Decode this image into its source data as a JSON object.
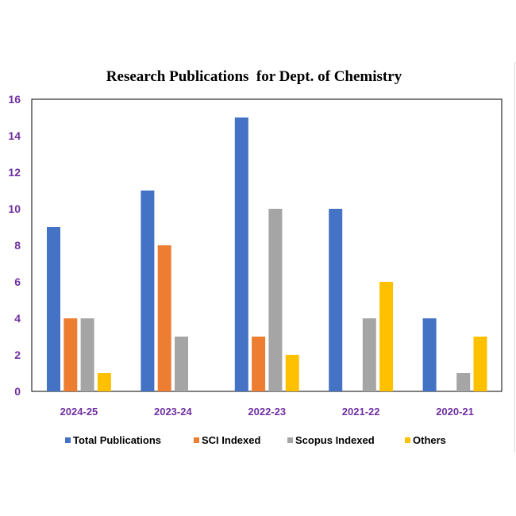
{
  "chart_data": {
    "type": "bar",
    "title": "Research Publications  for Dept. of Chemistry",
    "xlabel": "",
    "ylabel": "",
    "ylim": [
      0,
      16
    ],
    "yticks": [
      "0",
      "2",
      "4",
      "6",
      "8",
      "10",
      "12",
      "14",
      "16"
    ],
    "grid": false,
    "legend_position": "bottom",
    "categories": [
      "2024-25",
      "2023-24",
      "2022-23",
      "2021-22",
      "2020-21"
    ],
    "series": [
      {
        "name": "Total Publications",
        "color": "#4472C4",
        "values": [
          9,
          11,
          15,
          10,
          4
        ]
      },
      {
        "name": "SCI Indexed",
        "color": "#ED7D31",
        "values": [
          4,
          8,
          3,
          0,
          0
        ]
      },
      {
        "name": "Scopus Indexed",
        "color": "#A5A5A5",
        "values": [
          4,
          3,
          10,
          4,
          1
        ]
      },
      {
        "name": "Others",
        "color": "#FFC000",
        "values": [
          1,
          0,
          2,
          6,
          3
        ]
      }
    ]
  }
}
